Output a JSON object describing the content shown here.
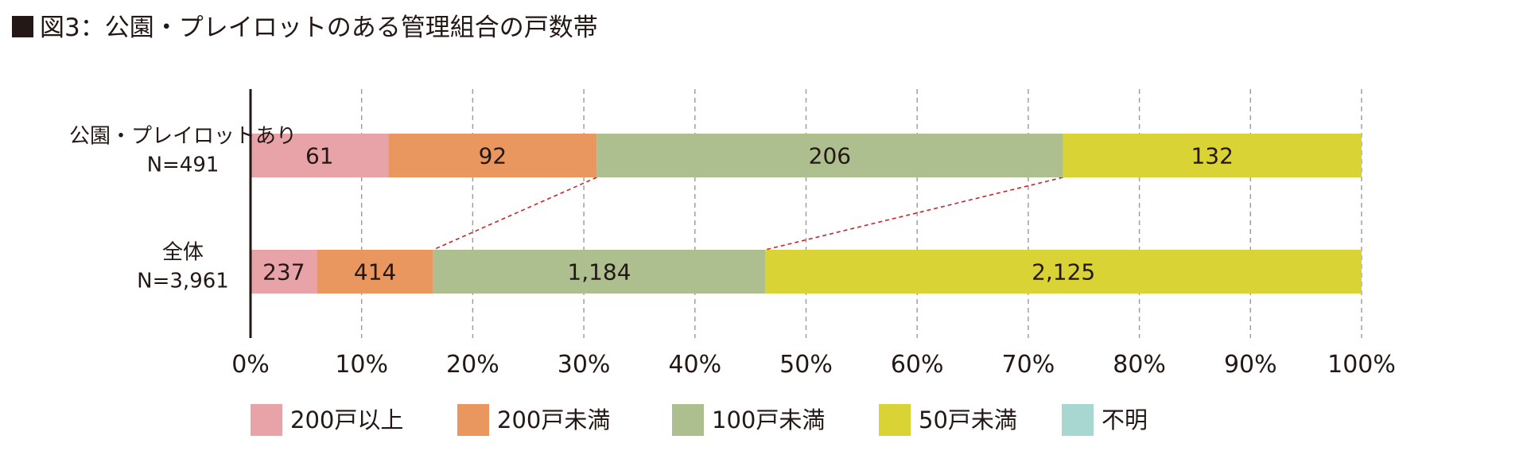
{
  "title": "図3：公園・プレイロットのある管理組合の戸数帯",
  "chart_data": {
    "type": "bar",
    "orientation": "horizontal",
    "stacked": "percent",
    "categories": [
      [
        "公園・プレイロットあり",
        "N=491"
      ],
      [
        "全体",
        "N=3,961"
      ]
    ],
    "series": [
      {
        "name": "200戸以上",
        "color": "#e8a3a8",
        "values": [
          61,
          237
        ],
        "labels": [
          "61",
          "237"
        ]
      },
      {
        "name": "200戸未満",
        "color": "#e9975f",
        "values": [
          92,
          414
        ],
        "labels": [
          "92",
          "414"
        ]
      },
      {
        "name": "100戸未満",
        "color": "#adbf8e",
        "values": [
          206,
          1184
        ],
        "labels": [
          "206",
          "1,184"
        ]
      },
      {
        "name": "50戸未満",
        "color": "#d9d336",
        "values": [
          132,
          2125
        ],
        "labels": [
          "132",
          "2,125"
        ]
      },
      {
        "name": "不明",
        "color": "#a8d6d0",
        "values": [
          0,
          0
        ],
        "labels": [
          "",
          ""
        ]
      }
    ],
    "xlim": [
      0,
      100
    ],
    "xticks": [
      "0%",
      "10%",
      "20%",
      "30%",
      "40%",
      "50%",
      "60%",
      "70%",
      "80%",
      "90%",
      "100%"
    ],
    "grid": "vertical dashed",
    "connector_lines": "dashed red lines between the boundaries of 200戸未満/100戸未満 and 100戸未満/50戸未満",
    "legend_position": "bottom"
  }
}
